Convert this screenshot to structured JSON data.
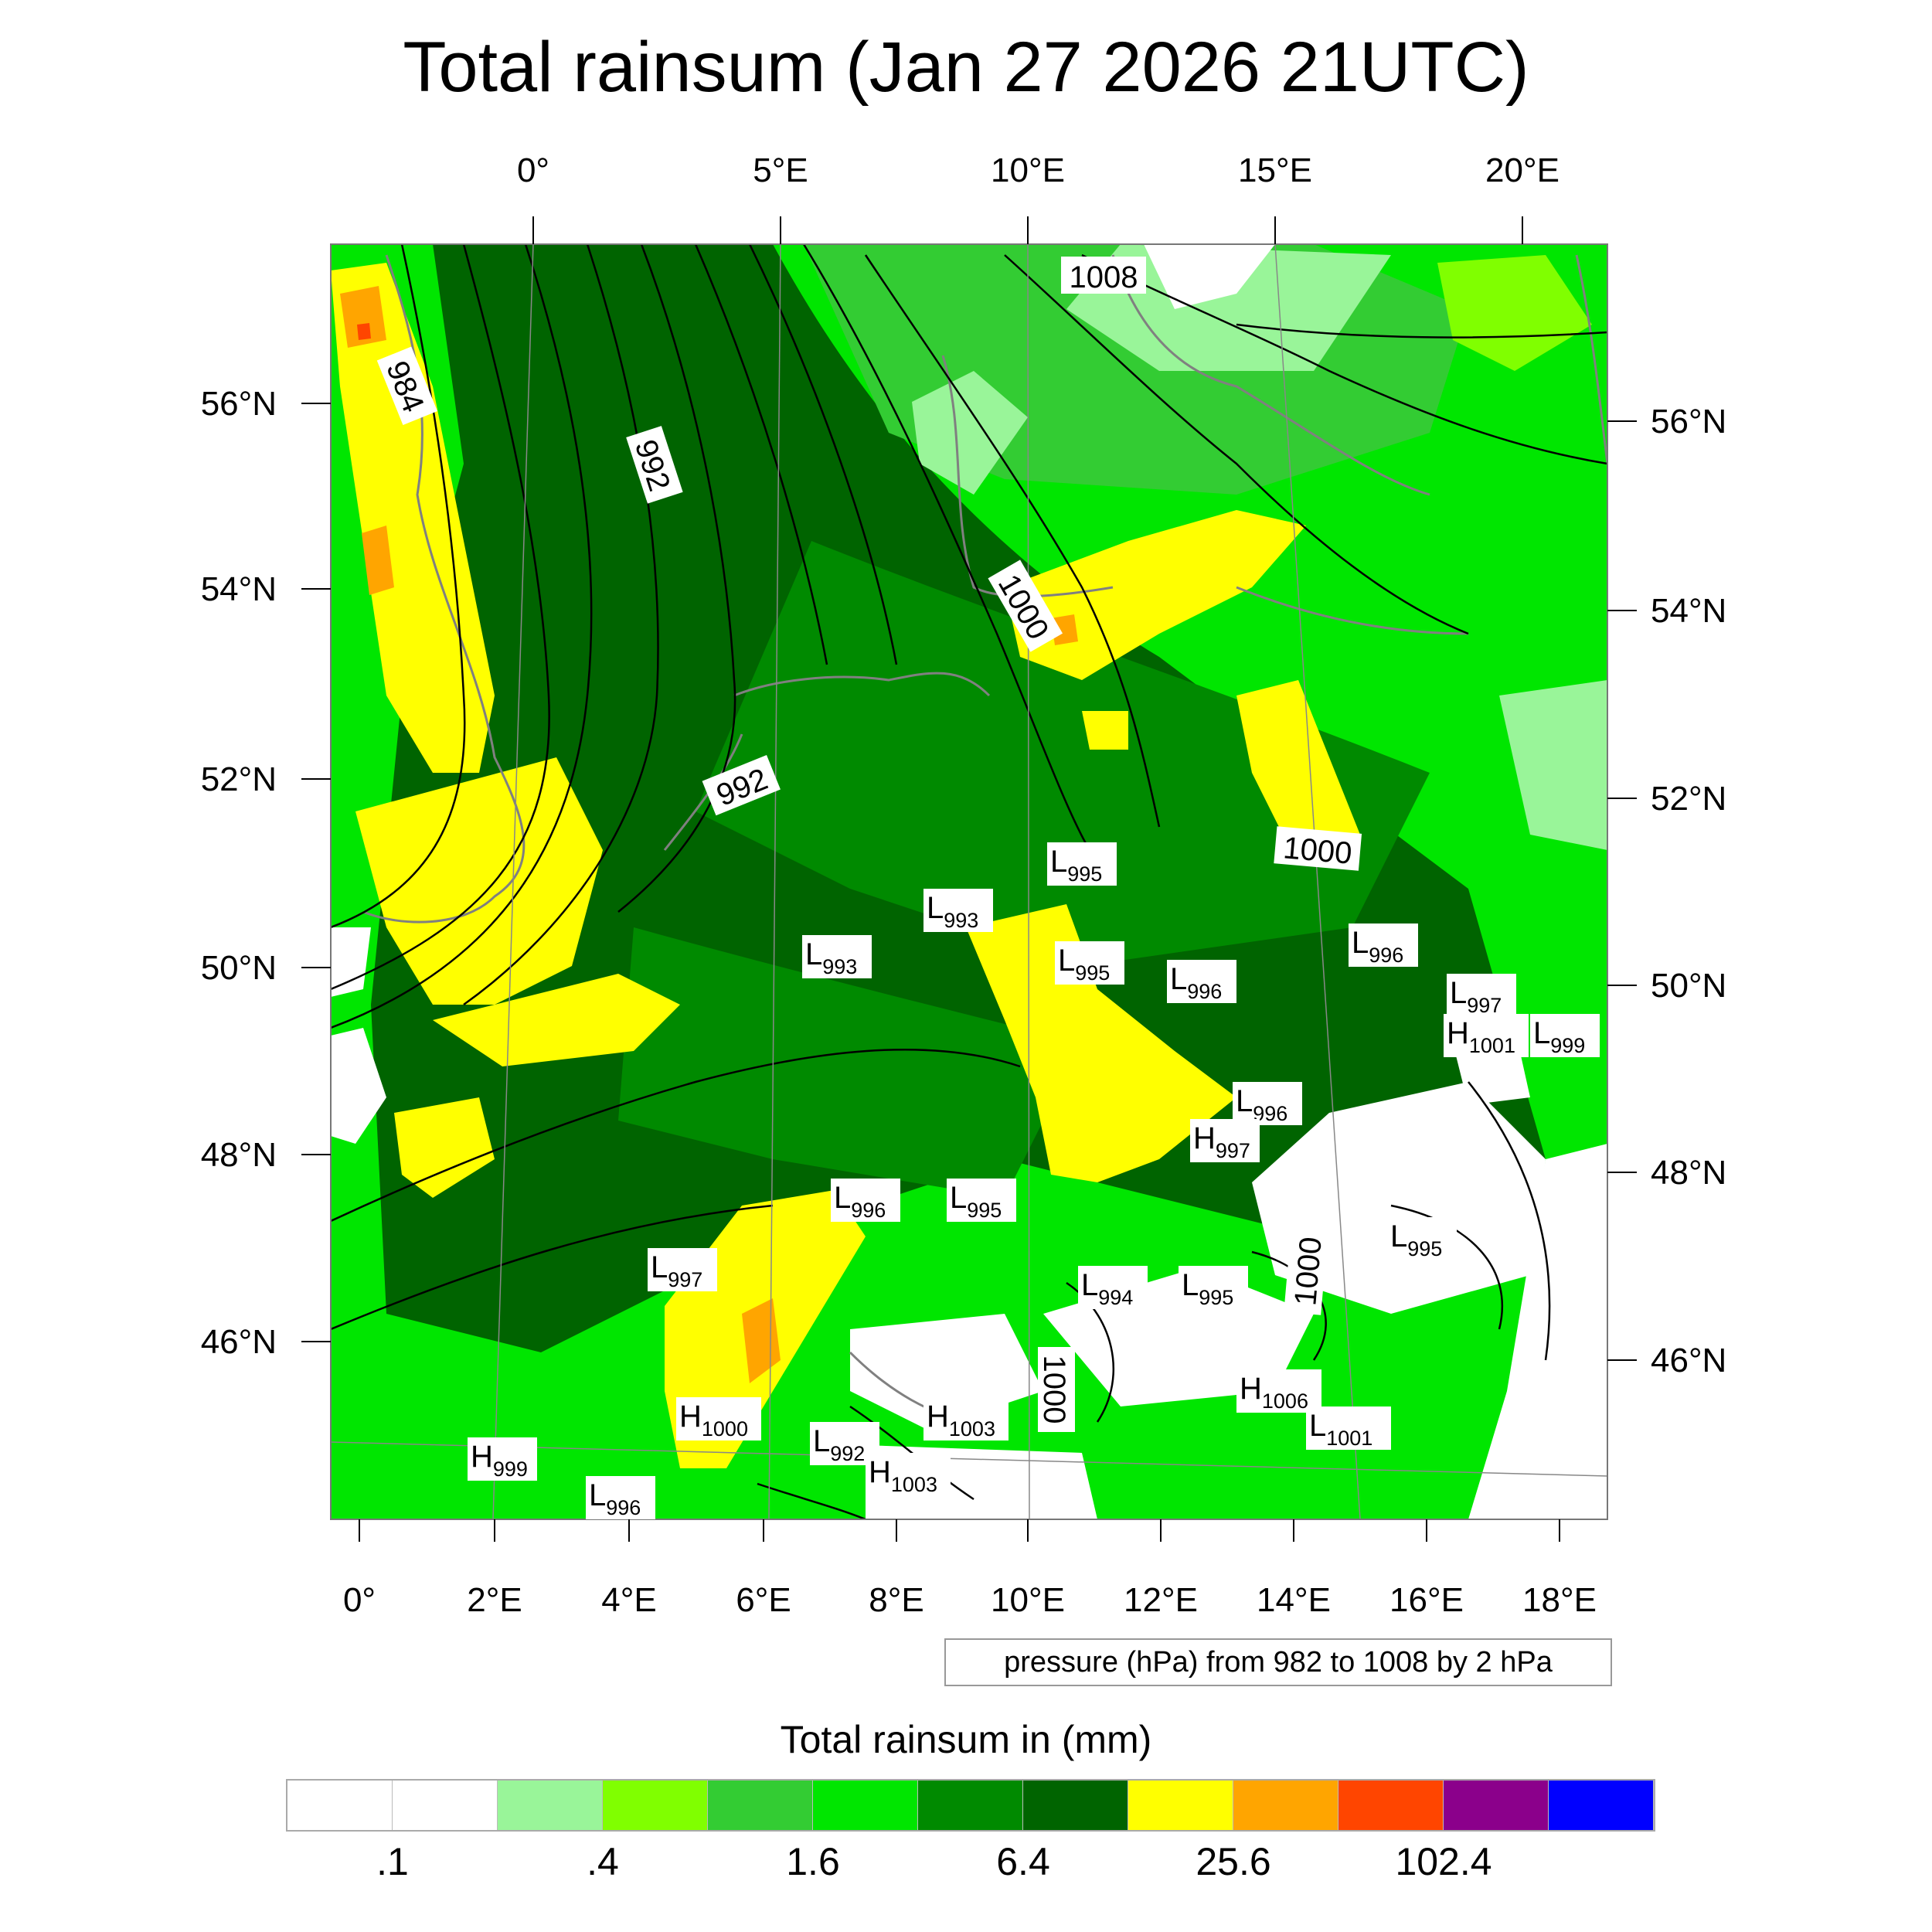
{
  "title": "Total rainsum (Jan 27 2026 21UTC)",
  "top_lon_ticks": [
    "0°",
    "5°E",
    "10°E",
    "15°E",
    "20°E"
  ],
  "bottom_lon_ticks": [
    "0°",
    "2°E",
    "4°E",
    "6°E",
    "8°E",
    "10°E",
    "12°E",
    "14°E",
    "16°E",
    "18°E"
  ],
  "left_lat_ticks": [
    "56°N",
    "54°N",
    "52°N",
    "50°N",
    "48°N",
    "46°N"
  ],
  "right_lat_ticks": [
    "56°N",
    "54°N",
    "52°N",
    "50°N",
    "48°N",
    "46°N"
  ],
  "contour_labels": [
    "984",
    "992",
    "992",
    "1000",
    "1000",
    "1008",
    "1000",
    "1000"
  ],
  "pressure_centers": [
    {
      "type": "L",
      "value": "995"
    },
    {
      "type": "L",
      "value": "993"
    },
    {
      "type": "L",
      "value": "993"
    },
    {
      "type": "L",
      "value": "995"
    },
    {
      "type": "L",
      "value": "996"
    },
    {
      "type": "L",
      "value": "996"
    },
    {
      "type": "L",
      "value": "997"
    },
    {
      "type": "H",
      "value": "1001"
    },
    {
      "type": "L",
      "value": "999"
    },
    {
      "type": "L",
      "value": "996"
    },
    {
      "type": "H",
      "value": "997"
    },
    {
      "type": "L",
      "value": "996"
    },
    {
      "type": "L",
      "value": "995"
    },
    {
      "type": "L",
      "value": "995"
    },
    {
      "type": "L",
      "value": "997"
    },
    {
      "type": "L",
      "value": "994"
    },
    {
      "type": "L",
      "value": "995"
    },
    {
      "type": "H",
      "value": "1000"
    },
    {
      "type": "H",
      "value": "999"
    },
    {
      "type": "L",
      "value": "996"
    },
    {
      "type": "L",
      "value": "992"
    },
    {
      "type": "H",
      "value": "1003"
    },
    {
      "type": "H",
      "value": "1003"
    },
    {
      "type": "H",
      "value": "1006"
    },
    {
      "type": "L",
      "value": "1001"
    }
  ],
  "contour_info": "pressure (hPa) from 982 to 1008 by 2 hPa",
  "colorbar": {
    "title": "Total rainsum in (mm)",
    "colors": [
      "#ffffff",
      "#ffffff",
      "#99f599",
      "#80ff00",
      "#33cc33",
      "#00e600",
      "#008a00",
      "#006400",
      "#ffff00",
      "#ffa500",
      "#ff4500",
      "#8b008b",
      "#0000ff"
    ],
    "labels": [
      ".1",
      ".4",
      "1.6",
      "6.4",
      "25.6",
      "102.4"
    ]
  }
}
